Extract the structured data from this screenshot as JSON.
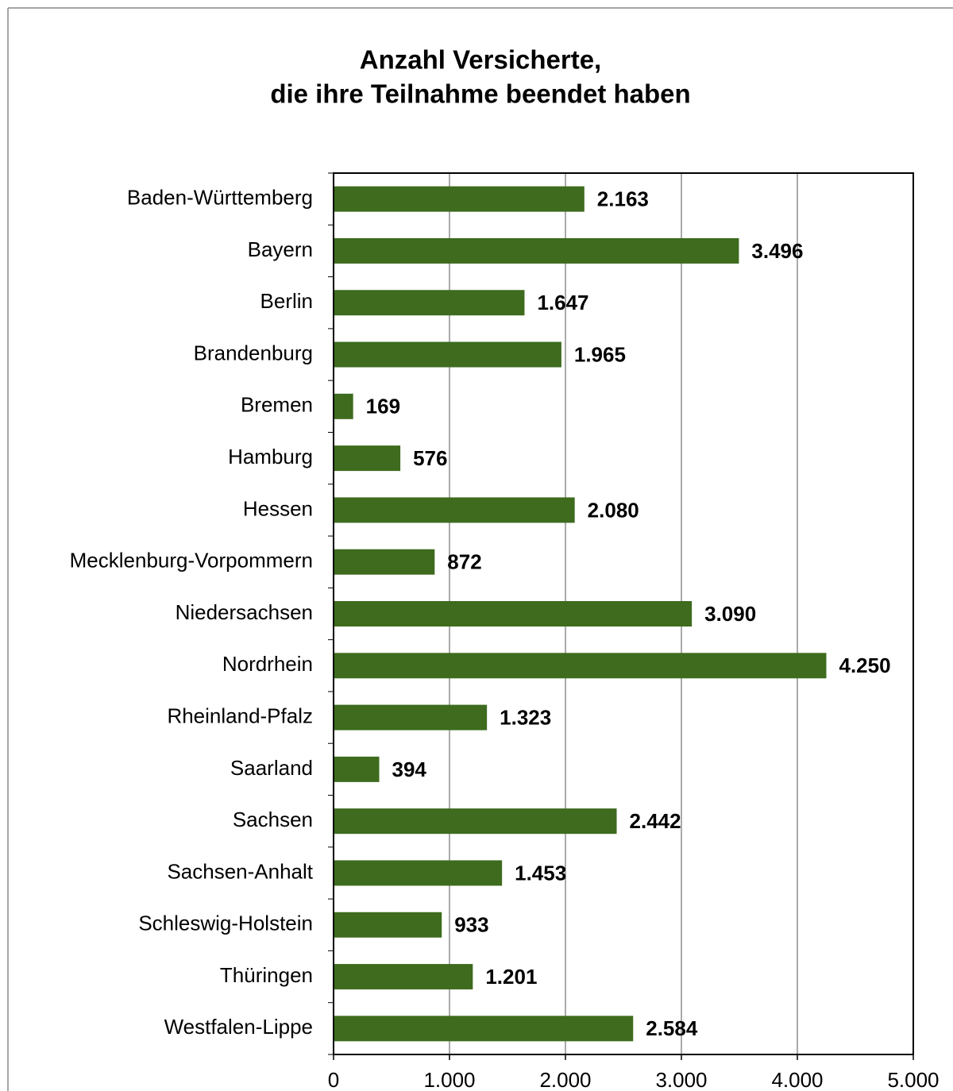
{
  "chart_data": {
    "type": "bar",
    "orientation": "horizontal",
    "title": [
      "Anzahl Versicherte,",
      "die ihre Teilnahme beendet haben"
    ],
    "categories": [
      "Baden-Württemberg",
      "Bayern",
      "Berlin",
      "Brandenburg",
      "Bremen",
      "Hamburg",
      "Hessen",
      "Mecklenburg-Vorpommern",
      "Niedersachsen",
      "Nordrhein",
      "Rheinland-Pfalz",
      "Saarland",
      "Sachsen",
      "Sachsen-Anhalt",
      "Schleswig-Holstein",
      "Thüringen",
      "Westfalen-Lippe"
    ],
    "values": [
      2163,
      3496,
      1647,
      1965,
      169,
      576,
      2080,
      872,
      3090,
      4250,
      1323,
      394,
      2442,
      1453,
      933,
      1201,
      2584
    ],
    "value_labels": [
      "2.163",
      "3.496",
      "1.647",
      "1.965",
      "169",
      "576",
      "2.080",
      "872",
      "3.090",
      "4.250",
      "1.323",
      "394",
      "2.442",
      "1.453",
      "933",
      "1.201",
      "2.584"
    ],
    "color": "#3e6b1e",
    "xlim": [
      0,
      5000
    ],
    "xticks": [
      0,
      {
        "value": 1000,
        "label": "1.000"
      },
      {
        "value": 2000,
        "label": "2.000"
      },
      {
        "value": 3000,
        "label": "3.000"
      },
      {
        "value": 4000,
        "label": "4.000"
      },
      {
        "value": 5000,
        "label": "5.000"
      }
    ],
    "grid": true
  }
}
